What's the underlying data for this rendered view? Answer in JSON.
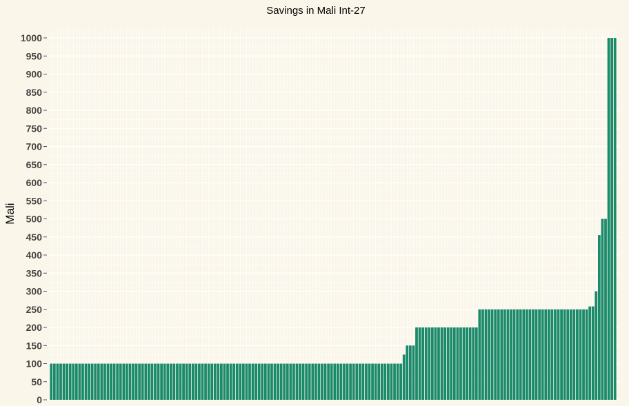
{
  "chart_data": {
    "type": "bar",
    "title": "Savings in Mali Int-27",
    "xlabel": "",
    "ylabel": "Mali",
    "ylim": [
      0,
      1000
    ],
    "yticks": [
      0,
      50,
      100,
      150,
      200,
      250,
      300,
      350,
      400,
      450,
      500,
      550,
      600,
      650,
      700,
      750,
      800,
      850,
      900,
      950,
      1000
    ],
    "grid": true,
    "legend": "none",
    "bar_color": "#1a8a6a",
    "background_color": "#faf6ea",
    "values": [
      100,
      100,
      100,
      100,
      100,
      100,
      100,
      100,
      100,
      100,
      100,
      100,
      100,
      100,
      100,
      100,
      100,
      100,
      100,
      100,
      100,
      100,
      100,
      100,
      100,
      100,
      100,
      100,
      100,
      100,
      100,
      100,
      100,
      100,
      100,
      100,
      100,
      100,
      100,
      100,
      100,
      100,
      100,
      100,
      100,
      100,
      100,
      100,
      100,
      100,
      100,
      100,
      100,
      100,
      100,
      100,
      100,
      100,
      100,
      100,
      100,
      100,
      100,
      100,
      100,
      100,
      100,
      100,
      100,
      100,
      100,
      100,
      100,
      100,
      100,
      100,
      100,
      100,
      100,
      100,
      100,
      100,
      100,
      100,
      100,
      100,
      100,
      100,
      100,
      100,
      100,
      100,
      100,
      100,
      100,
      100,
      100,
      100,
      100,
      100,
      100,
      100,
      100,
      100,
      100,
      100,
      100,
      100,
      100,
      100,
      100,
      100,
      125,
      150,
      150,
      150,
      200,
      200,
      200,
      200,
      200,
      200,
      200,
      200,
      200,
      200,
      200,
      200,
      200,
      200,
      200,
      200,
      200,
      200,
      200,
      200,
      250,
      250,
      250,
      250,
      250,
      250,
      250,
      250,
      250,
      250,
      250,
      250,
      250,
      250,
      250,
      250,
      250,
      250,
      250,
      250,
      250,
      250,
      250,
      250,
      250,
      250,
      250,
      250,
      250,
      250,
      250,
      250,
      250,
      250,
      250,
      258,
      258,
      300,
      455,
      500,
      500,
      1000,
      1000,
      1000
    ]
  }
}
